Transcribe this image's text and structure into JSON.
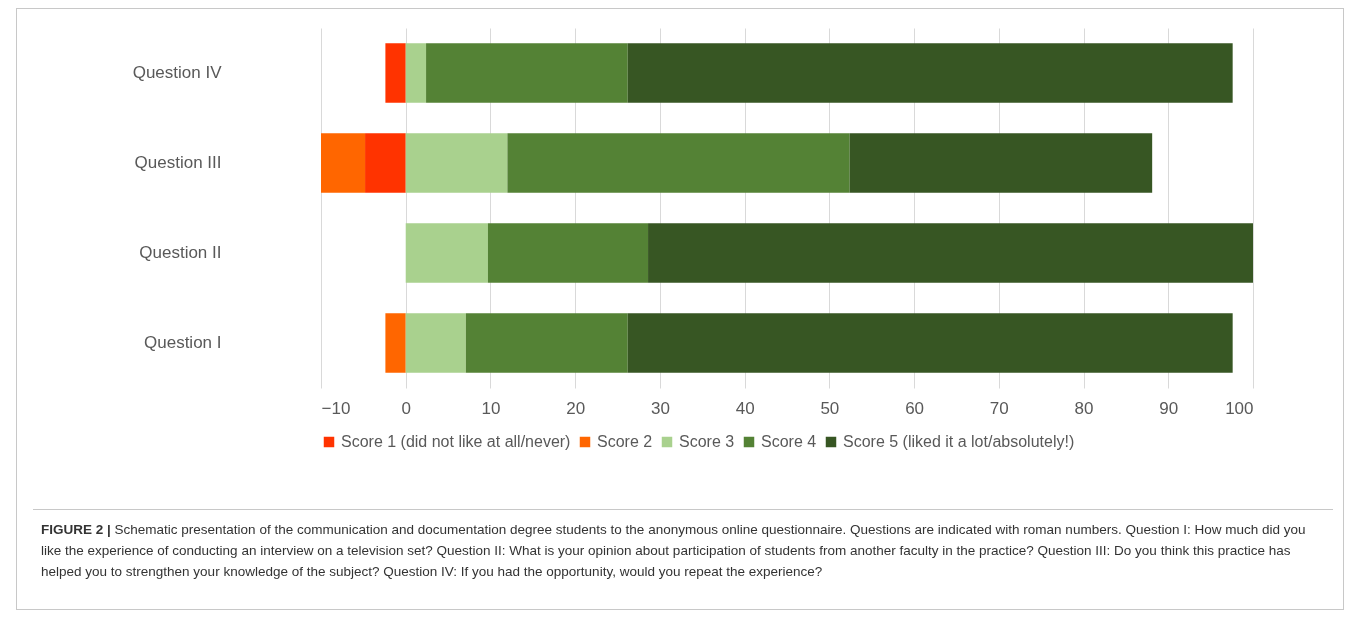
{
  "chart_data": {
    "type": "bar",
    "orientation": "horizontal",
    "stacked": true,
    "categories": [
      "Question IV",
      "Question III",
      "Question II",
      "Question I"
    ],
    "series": [
      {
        "name": "Score 1 (did not like at all/never)",
        "color": "#ff3300",
        "values": [
          -2.4,
          -4.8,
          null,
          null
        ]
      },
      {
        "name": "Score 2",
        "color": "#ff6600",
        "values": [
          null,
          -5.2,
          null,
          -2.4
        ]
      },
      {
        "name": "Score 3",
        "color": "#a9d18e",
        "values": [
          2.4,
          12,
          9.7,
          7.1
        ]
      },
      {
        "name": "Score 4",
        "color": "#548235",
        "values": [
          23.8,
          40.4,
          18.9,
          19.1
        ]
      },
      {
        "name": "Score 5 (liked it a lot/absolutely!)",
        "color": "#375623",
        "values": [
          71.4,
          35.7,
          71.4,
          71.4
        ]
      }
    ],
    "xlim": [
      -10,
      100
    ],
    "xticks": [
      -10,
      0,
      10,
      20,
      30,
      40,
      50,
      60,
      70,
      80,
      90,
      100
    ],
    "grid": "x",
    "legend": "bottom",
    "annotations": [
      "FIGURE 2 | Schematic presentation of the communication and documentation degree students to the anonymous online questionnaire. Questions are indicated with roman numbers. Question I: How much did you like the experience of conducting an interview on a television set? Question II: What is your opinion about participation of students from another faculty in the practice? Question III: Do you think this practice has helped you to strengthen your knowledge of the subject? Question IV: If you had the opportunity, would you repeat the experience?"
    ]
  }
}
